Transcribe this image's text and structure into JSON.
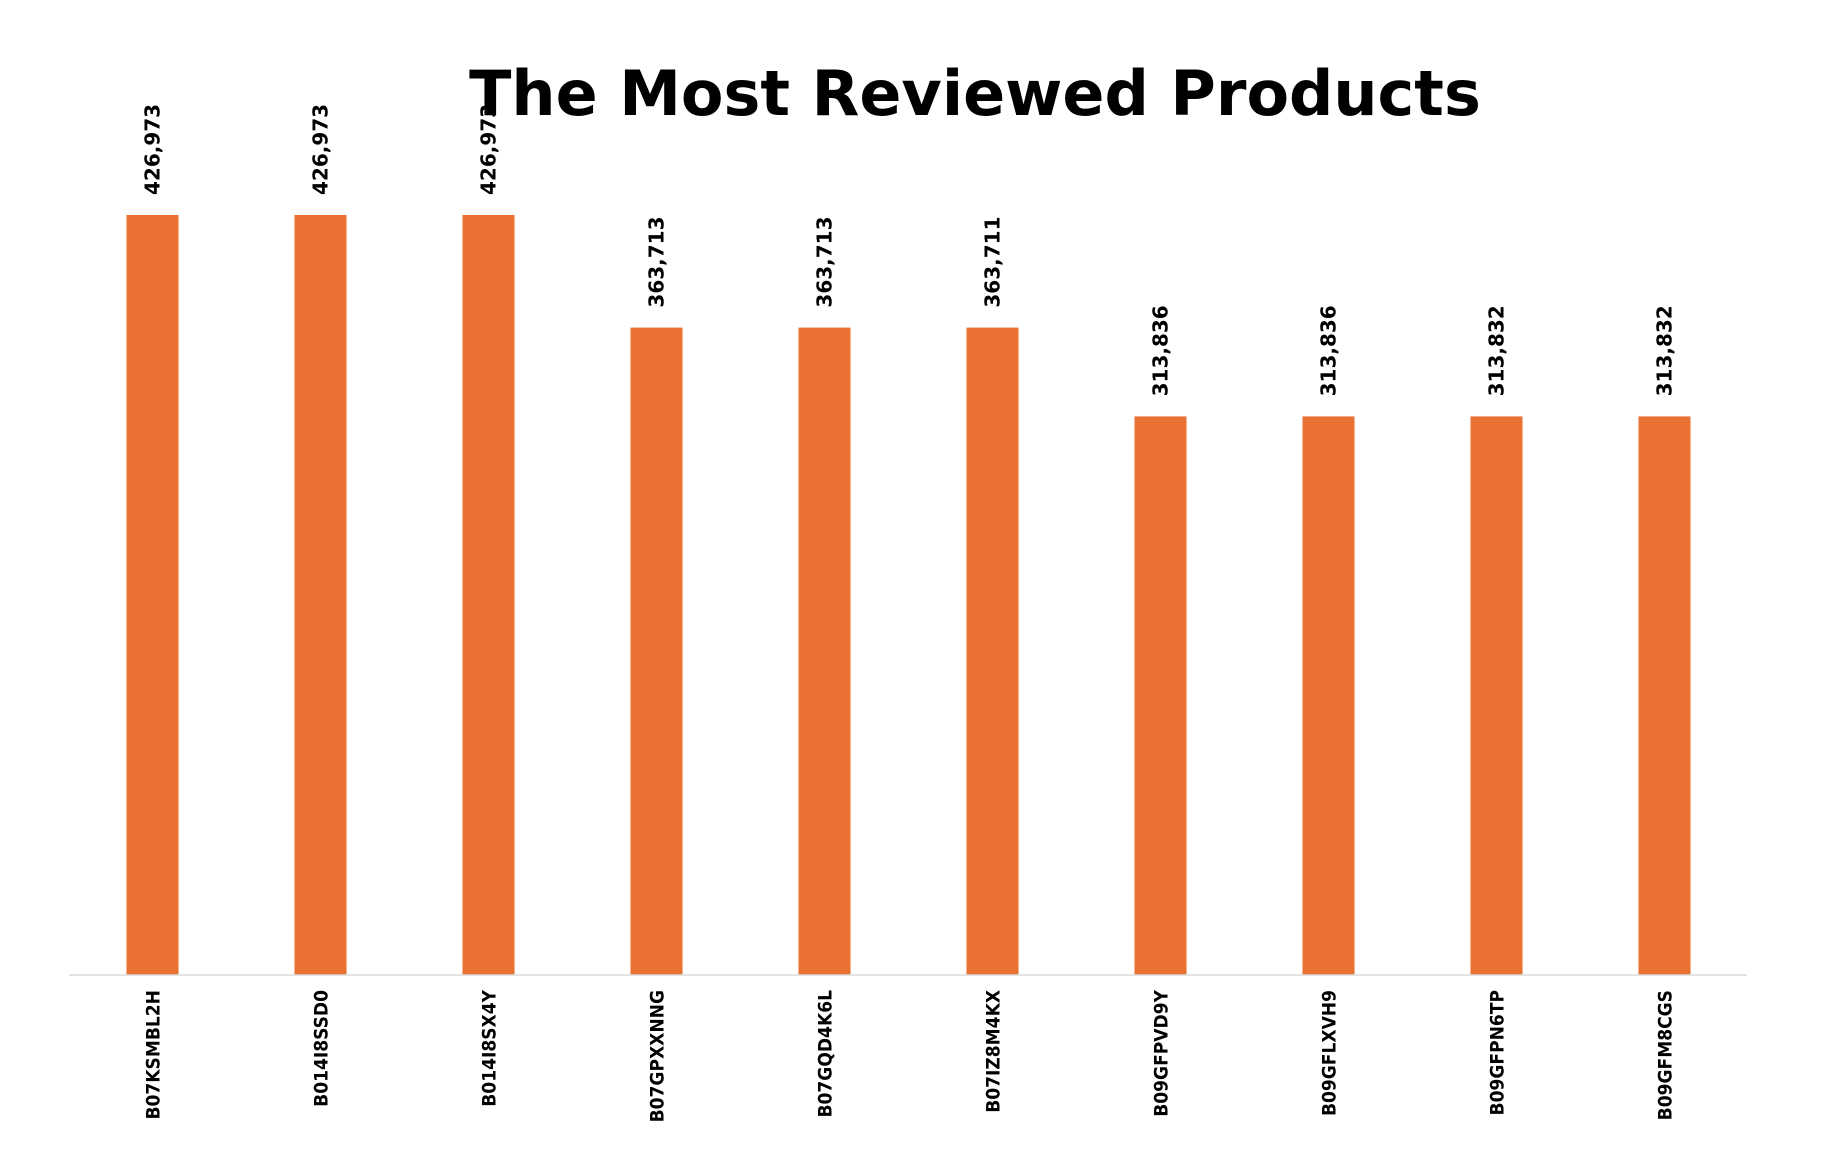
{
  "chart_data": {
    "type": "bar",
    "title": "The Most Reviewed Products",
    "categories": [
      "B07KSMBL2H",
      "B014I8SSD0",
      "B014I8SX4Y",
      "B07GPXXNNG",
      "B07GQD4K6L",
      "B07IZ8M4KX",
      "B09GFPVD9Y",
      "B09GFLXVH9",
      "B09GFPN6TP",
      "B09GFM8CGS"
    ],
    "values": [
      426973,
      426973,
      426973,
      363713,
      363713,
      363711,
      313836,
      313836,
      313832,
      313832
    ],
    "data_labels": [
      "426,973",
      "426,973",
      "426,973",
      "363,713",
      "363,713",
      "363,711",
      "313,836",
      "313,836",
      "313,832",
      "313,832"
    ],
    "xlabel": "",
    "ylabel": "",
    "ylim": [
      0,
      426973
    ],
    "grid": false,
    "legend": "none",
    "bar_color": "#E97132",
    "axis_color": "#D9D9D9"
  }
}
